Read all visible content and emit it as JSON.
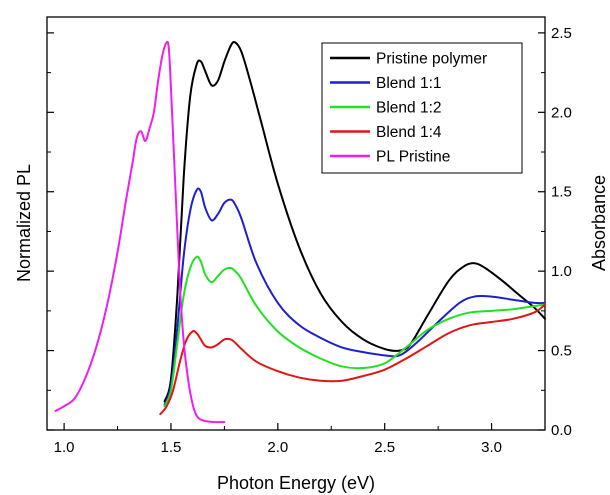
{
  "chart_data": {
    "type": "line",
    "title": "",
    "xlabel": "Photon Energy (eV)",
    "ylabel_left": "Normalized PL",
    "ylabel_right": "Absorbance",
    "xlim": [
      0.92,
      3.25
    ],
    "ylim_right": [
      0.0,
      2.6
    ],
    "x_ticks": [
      "1.0",
      "1.5",
      "2.0",
      "2.5",
      "3.0"
    ],
    "x_tick_values": [
      1.0,
      1.5,
      2.0,
      2.5,
      3.0
    ],
    "y_right_ticks": [
      "0.0",
      "0.5",
      "1.0",
      "1.5",
      "2.0",
      "2.5"
    ],
    "y_right_tick_values": [
      0.0,
      0.5,
      1.0,
      1.5,
      2.0,
      2.5
    ],
    "left_axis_unlabeled": true,
    "grid": false,
    "legend_position": "top-right",
    "series": [
      {
        "name": "Pristine polymer",
        "color": "#000000",
        "x": [
          1.47,
          1.5,
          1.53,
          1.56,
          1.59,
          1.62,
          1.64,
          1.66,
          1.69,
          1.72,
          1.75,
          1.78,
          1.8,
          1.83,
          1.87,
          1.92,
          2.0,
          2.1,
          2.2,
          2.3,
          2.4,
          2.5,
          2.57,
          2.62,
          2.7,
          2.8,
          2.87,
          2.92,
          2.97,
          3.05,
          3.12,
          3.2,
          3.25
        ],
        "y": [
          0.18,
          0.32,
          0.85,
          1.6,
          2.1,
          2.3,
          2.32,
          2.26,
          2.17,
          2.2,
          2.32,
          2.42,
          2.44,
          2.38,
          2.2,
          1.95,
          1.55,
          1.15,
          0.86,
          0.68,
          0.57,
          0.51,
          0.5,
          0.54,
          0.72,
          0.94,
          1.03,
          1.05,
          1.02,
          0.94,
          0.86,
          0.77,
          0.7
        ]
      },
      {
        "name": "Blend 1:1",
        "color": "#1f1fd0",
        "x": [
          1.47,
          1.5,
          1.53,
          1.56,
          1.59,
          1.62,
          1.64,
          1.66,
          1.69,
          1.72,
          1.75,
          1.78,
          1.8,
          1.83,
          1.9,
          2.0,
          2.1,
          2.2,
          2.3,
          2.4,
          2.5,
          2.57,
          2.65,
          2.75,
          2.85,
          2.92,
          3.0,
          3.1,
          3.2,
          3.25
        ],
        "y": [
          0.16,
          0.28,
          0.65,
          1.1,
          1.38,
          1.51,
          1.5,
          1.4,
          1.32,
          1.36,
          1.43,
          1.45,
          1.42,
          1.33,
          1.05,
          0.8,
          0.66,
          0.58,
          0.52,
          0.49,
          0.47,
          0.47,
          0.55,
          0.68,
          0.8,
          0.84,
          0.84,
          0.82,
          0.8,
          0.8
        ]
      },
      {
        "name": "Blend 1:2",
        "color": "#22e022",
        "x": [
          1.47,
          1.5,
          1.53,
          1.56,
          1.59,
          1.62,
          1.64,
          1.66,
          1.69,
          1.72,
          1.75,
          1.78,
          1.8,
          1.83,
          1.9,
          2.0,
          2.1,
          2.2,
          2.3,
          2.4,
          2.5,
          2.6,
          2.7,
          2.8,
          2.9,
          3.0,
          3.1,
          3.2,
          3.25
        ],
        "y": [
          0.15,
          0.25,
          0.55,
          0.85,
          1.02,
          1.09,
          1.06,
          0.98,
          0.93,
          0.97,
          1.01,
          1.02,
          1.0,
          0.95,
          0.78,
          0.62,
          0.52,
          0.45,
          0.4,
          0.39,
          0.42,
          0.52,
          0.63,
          0.7,
          0.74,
          0.75,
          0.76,
          0.78,
          0.79
        ]
      },
      {
        "name": "Blend 1:4",
        "color": "#e01515",
        "x": [
          1.45,
          1.48,
          1.51,
          1.54,
          1.57,
          1.6,
          1.62,
          1.64,
          1.66,
          1.69,
          1.72,
          1.75,
          1.78,
          1.8,
          1.83,
          1.9,
          2.0,
          2.1,
          2.2,
          2.3,
          2.4,
          2.5,
          2.6,
          2.7,
          2.8,
          2.9,
          3.0,
          3.1,
          3.2,
          3.25
        ],
        "y": [
          0.1,
          0.15,
          0.25,
          0.42,
          0.56,
          0.62,
          0.61,
          0.57,
          0.53,
          0.52,
          0.54,
          0.57,
          0.57,
          0.55,
          0.51,
          0.43,
          0.37,
          0.33,
          0.31,
          0.31,
          0.34,
          0.38,
          0.45,
          0.53,
          0.61,
          0.66,
          0.68,
          0.7,
          0.74,
          0.79
        ]
      },
      {
        "name": "PL Pristine",
        "color": "#ee1fee",
        "x": [
          0.96,
          1.0,
          1.05,
          1.1,
          1.15,
          1.2,
          1.25,
          1.29,
          1.32,
          1.34,
          1.36,
          1.38,
          1.4,
          1.42,
          1.44,
          1.46,
          1.48,
          1.49,
          1.5,
          1.52,
          1.54,
          1.56,
          1.58,
          1.6,
          1.62,
          1.65,
          1.7,
          1.75
        ],
        "y": [
          0.12,
          0.15,
          0.2,
          0.33,
          0.52,
          0.78,
          1.12,
          1.45,
          1.68,
          1.84,
          1.88,
          1.82,
          1.9,
          2.0,
          2.2,
          2.36,
          2.44,
          2.4,
          2.15,
          1.55,
          0.95,
          0.55,
          0.32,
          0.17,
          0.09,
          0.06,
          0.05,
          0.05
        ]
      }
    ]
  }
}
